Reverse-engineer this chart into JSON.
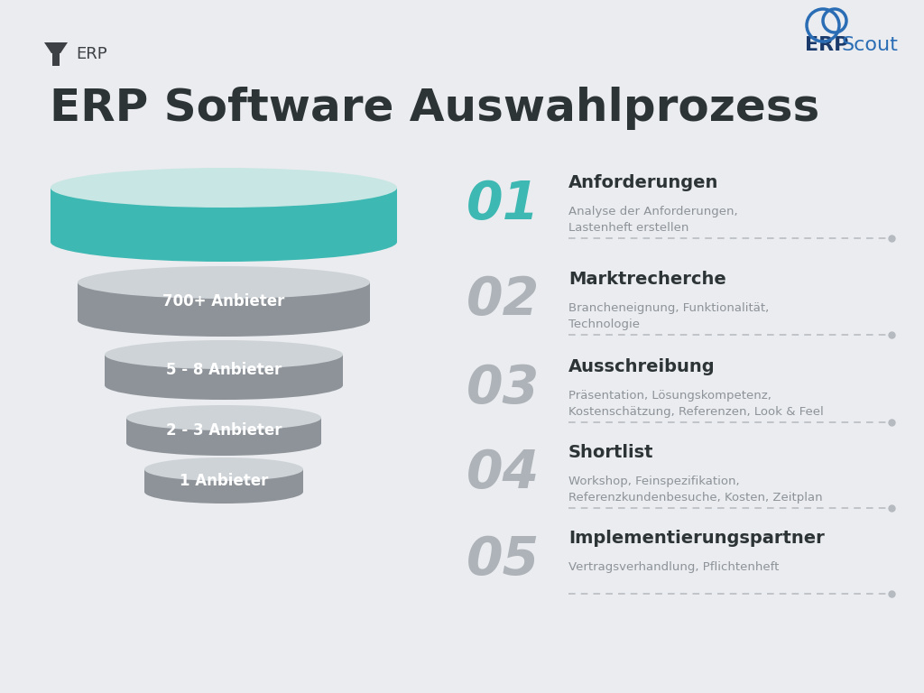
{
  "title": "ERP Software Auswahlprozess",
  "subtitle_icon": "ERP",
  "bg_color": "#eaecef",
  "title_color": "#2d3436",
  "title_fontsize": 36,
  "funnel_labels": [
    "",
    "700+ Anbieter",
    "5 - 8 Anbieter",
    "2 - 3 Anbieter",
    "1 Anbieter"
  ],
  "teal_top": "#c8e6e4",
  "teal_side": "#3db8b2",
  "gray_top": "#ced3d7",
  "gray_side": "#8d9399",
  "stages_info": [
    {
      "num": "01",
      "title": "Anforderungen",
      "desc": "Analyse der Anforderungen,\nLastenheft erstellen",
      "num_color": "#3db8b2",
      "title_color": "#2d3436",
      "desc_color": "#8d9399"
    },
    {
      "num": "02",
      "title": "Marktrecherche",
      "desc": "Brancheneignung, Funktionalität,\nTechnologie",
      "num_color": "#adb3b8",
      "title_color": "#2d3436",
      "desc_color": "#8d9399"
    },
    {
      "num": "03",
      "title": "Ausschreibung",
      "desc": "Präsentation, Lösungskompetenz,\nKostenschätzung, Referenzen, Look & Feel",
      "num_color": "#adb3b8",
      "title_color": "#2d3436",
      "desc_color": "#8d9399"
    },
    {
      "num": "04",
      "title": "Shortlist",
      "desc": "Workshop, Feinspezifikation,\nReferenzkundenbesuche, Kosten, Zeitplan",
      "num_color": "#adb3b8",
      "title_color": "#2d3436",
      "desc_color": "#8d9399"
    },
    {
      "num": "05",
      "title": "Implementierungspartner",
      "desc": "Vertragsverhandlung, Pflichtenheft",
      "num_color": "#adb3b8",
      "title_color": "#2d3436",
      "desc_color": "#8d9399"
    }
  ],
  "dashed_line_color": "#b5bac0",
  "dot_color": "#b5bac0"
}
